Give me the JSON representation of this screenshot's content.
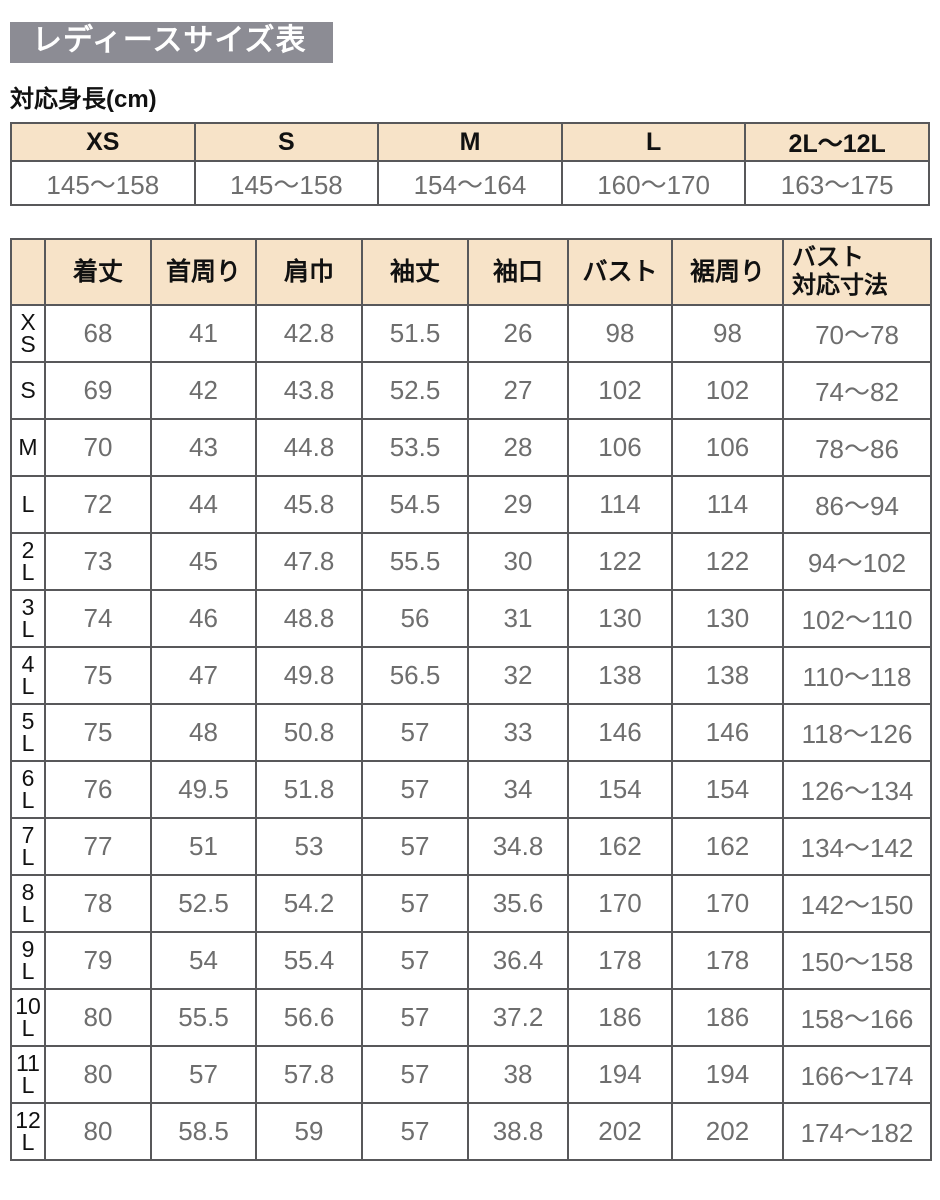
{
  "page": {
    "title": "レディースサイズ表",
    "height_label": "対応身長(cm)"
  },
  "chart_data": [
    {
      "type": "table",
      "name": "height_range_table",
      "title": "対応身長(cm)",
      "columns": [
        "XS",
        "S",
        "M",
        "L",
        "2L～12L"
      ],
      "rows": [
        [
          "145～158",
          "145～158",
          "154～164",
          "160～170",
          "163～175"
        ]
      ]
    },
    {
      "type": "table",
      "name": "measurements_table",
      "columns": [
        "着丈",
        "首周り",
        "肩巾",
        "袖丈",
        "袖口",
        "バスト",
        "裾周り",
        "バスト\n対応寸法"
      ],
      "row_labels": [
        "XS",
        "S",
        "M",
        "L",
        "2L",
        "3L",
        "4L",
        "5L",
        "6L",
        "7L",
        "8L",
        "9L",
        "10L",
        "11L",
        "12L"
      ],
      "rows": [
        [
          68,
          41,
          42.8,
          51.5,
          26,
          98,
          98,
          "70～78"
        ],
        [
          69,
          42,
          43.8,
          52.5,
          27,
          102,
          102,
          "74～82"
        ],
        [
          70,
          43,
          44.8,
          53.5,
          28,
          106,
          106,
          "78～86"
        ],
        [
          72,
          44,
          45.8,
          54.5,
          29,
          114,
          114,
          "86～94"
        ],
        [
          73,
          45,
          47.8,
          55.5,
          30,
          122,
          122,
          "94～102"
        ],
        [
          74,
          46,
          48.8,
          56,
          31,
          130,
          130,
          "102～110"
        ],
        [
          75,
          47,
          49.8,
          56.5,
          32,
          138,
          138,
          "110～118"
        ],
        [
          75,
          48,
          50.8,
          57,
          33,
          146,
          146,
          "118～126"
        ],
        [
          76,
          49.5,
          51.8,
          57,
          34,
          154,
          154,
          "126～134"
        ],
        [
          77,
          51,
          53,
          57,
          34.8,
          162,
          162,
          "134～142"
        ],
        [
          78,
          52.5,
          54.2,
          57,
          35.6,
          170,
          170,
          "142～150"
        ],
        [
          79,
          54,
          55.4,
          57,
          36.4,
          178,
          178,
          "150～158"
        ],
        [
          80,
          55.5,
          56.6,
          57,
          37.2,
          186,
          186,
          "158～166"
        ],
        [
          80,
          57,
          57.8,
          57,
          38,
          194,
          194,
          "166～174"
        ],
        [
          80,
          58.5,
          59,
          57,
          38.8,
          202,
          202,
          "174～182"
        ]
      ]
    }
  ],
  "colors": {
    "title_bg": "#8C8C94",
    "title_text": "#FFFFFF",
    "header_bg": "#F7E3C8",
    "border": "#58585A",
    "value_text": "#6E6E6E",
    "label_text": "#111111"
  }
}
